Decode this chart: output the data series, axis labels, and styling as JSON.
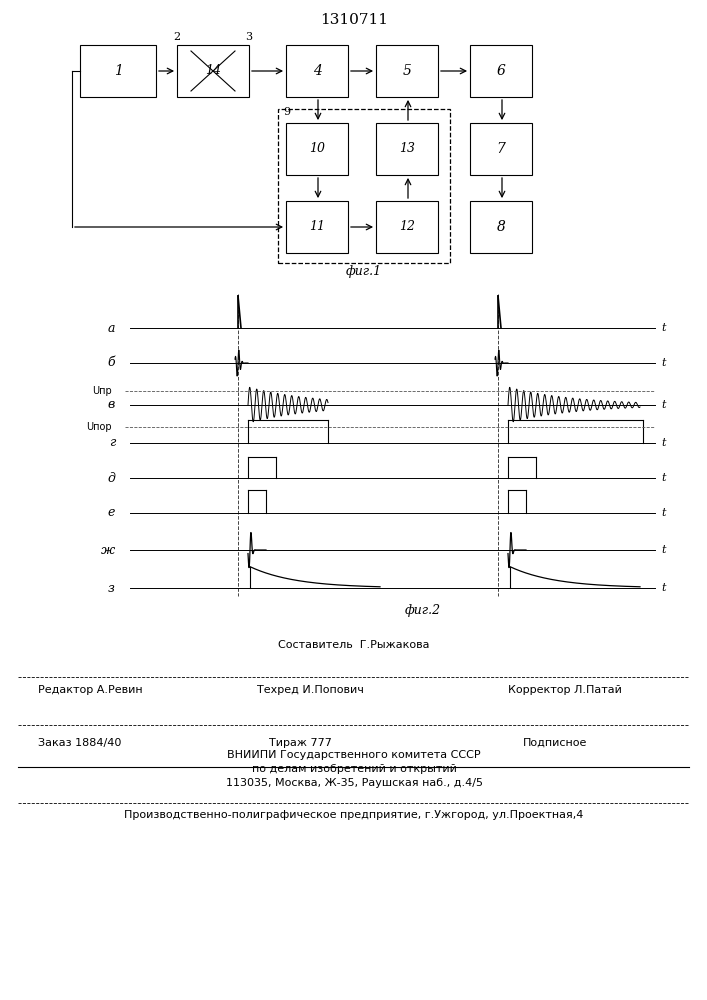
{
  "title": "1310711",
  "fig1_caption": "фиг.1",
  "fig2_caption": "фиг.2",
  "bg_color": "#ffffff",
  "line_color": "#000000",
  "dashed_color": "#555555",
  "waveform_labels": [
    "а",
    "б",
    "в",
    "г",
    "д",
    "е",
    "ж",
    "з"
  ],
  "threshold_label1": "Uпр",
  "threshold_label2": "Uпор",
  "footer_compositor": "Составитель  Г.Рыжакова",
  "footer_editor": "Редактор А.Ревин",
  "footer_techred": "Техред И.Попович",
  "footer_corrector": "Корректор Л.Патай",
  "footer_order": "Заказ 1884/40",
  "footer_tirazh": "Тираж 777",
  "footer_podpisnoe": "Подписное",
  "footer_vniipи": "ВНИИПИ Государственного комитета СССР",
  "footer_po_delam": "по делам изобретений и открытий",
  "footer_address": "113035, Москва, Ж-35, Раушская наб., д.4/5",
  "footer_proizv": "Производственно-полиграфическое предприятие, г.Ужгород, ул.Проектная,4"
}
